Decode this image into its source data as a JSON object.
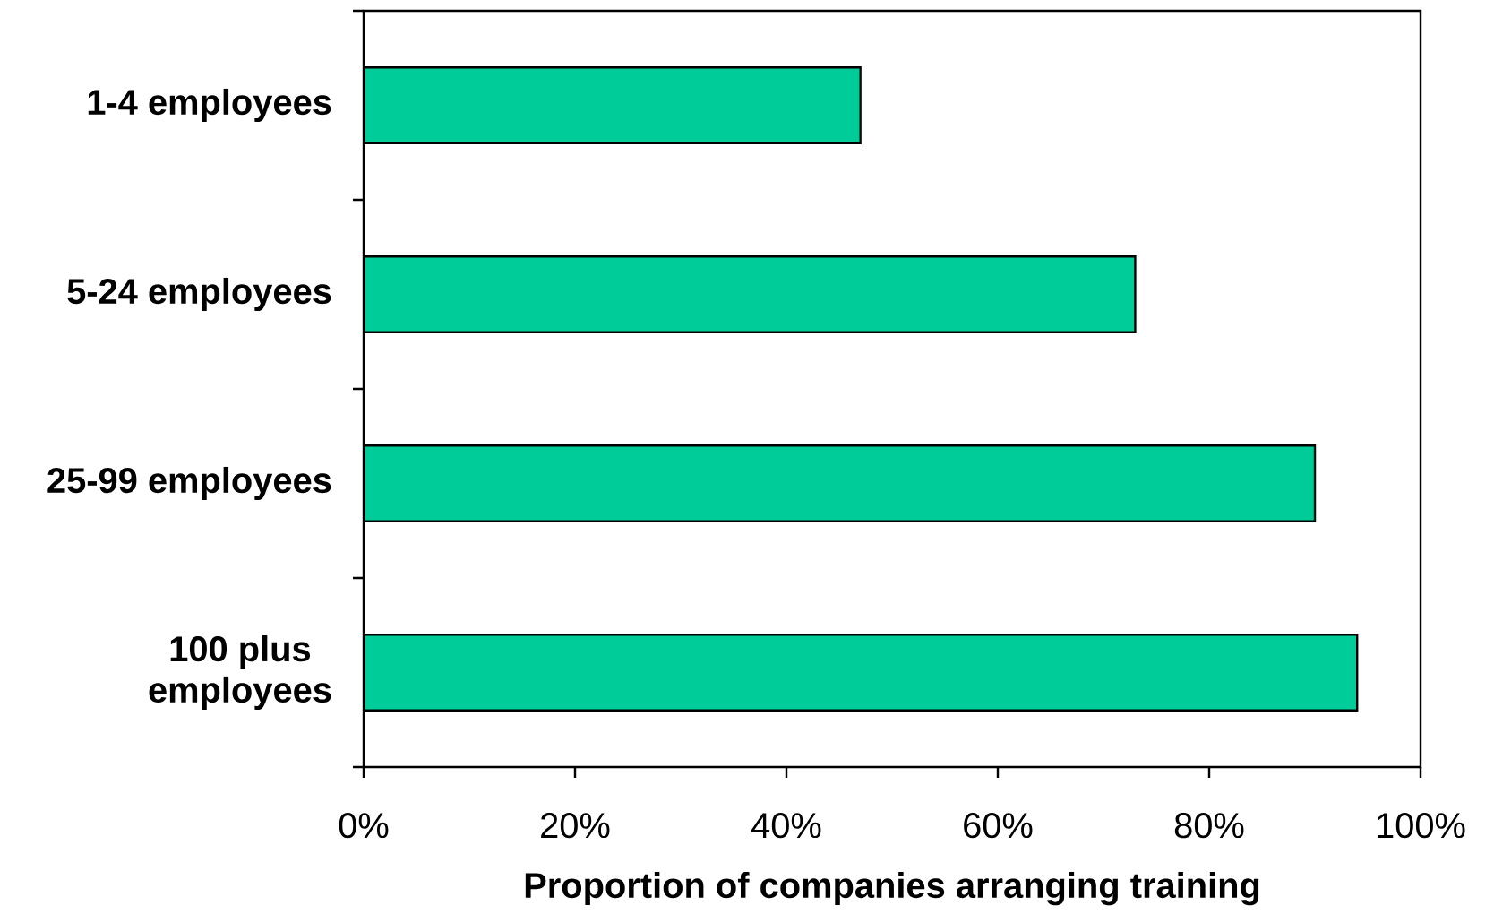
{
  "chart_data": {
    "type": "bar",
    "orientation": "horizontal",
    "categories": [
      "1-4 employees",
      "5-24 employees",
      "25-99 employees",
      "100 plus employees"
    ],
    "values": [
      47,
      73,
      90,
      94
    ],
    "color": "#00cc99",
    "xlabel": "Proportion of companies arranging training",
    "xlim": [
      0,
      100
    ],
    "xticks": [
      {
        "value": 0,
        "label": "0%"
      },
      {
        "value": 20,
        "label": "20%"
      },
      {
        "value": 40,
        "label": "40%"
      },
      {
        "value": 60,
        "label": "60%"
      },
      {
        "value": 80,
        "label": "80%"
      },
      {
        "value": 100,
        "label": "100%"
      }
    ]
  }
}
